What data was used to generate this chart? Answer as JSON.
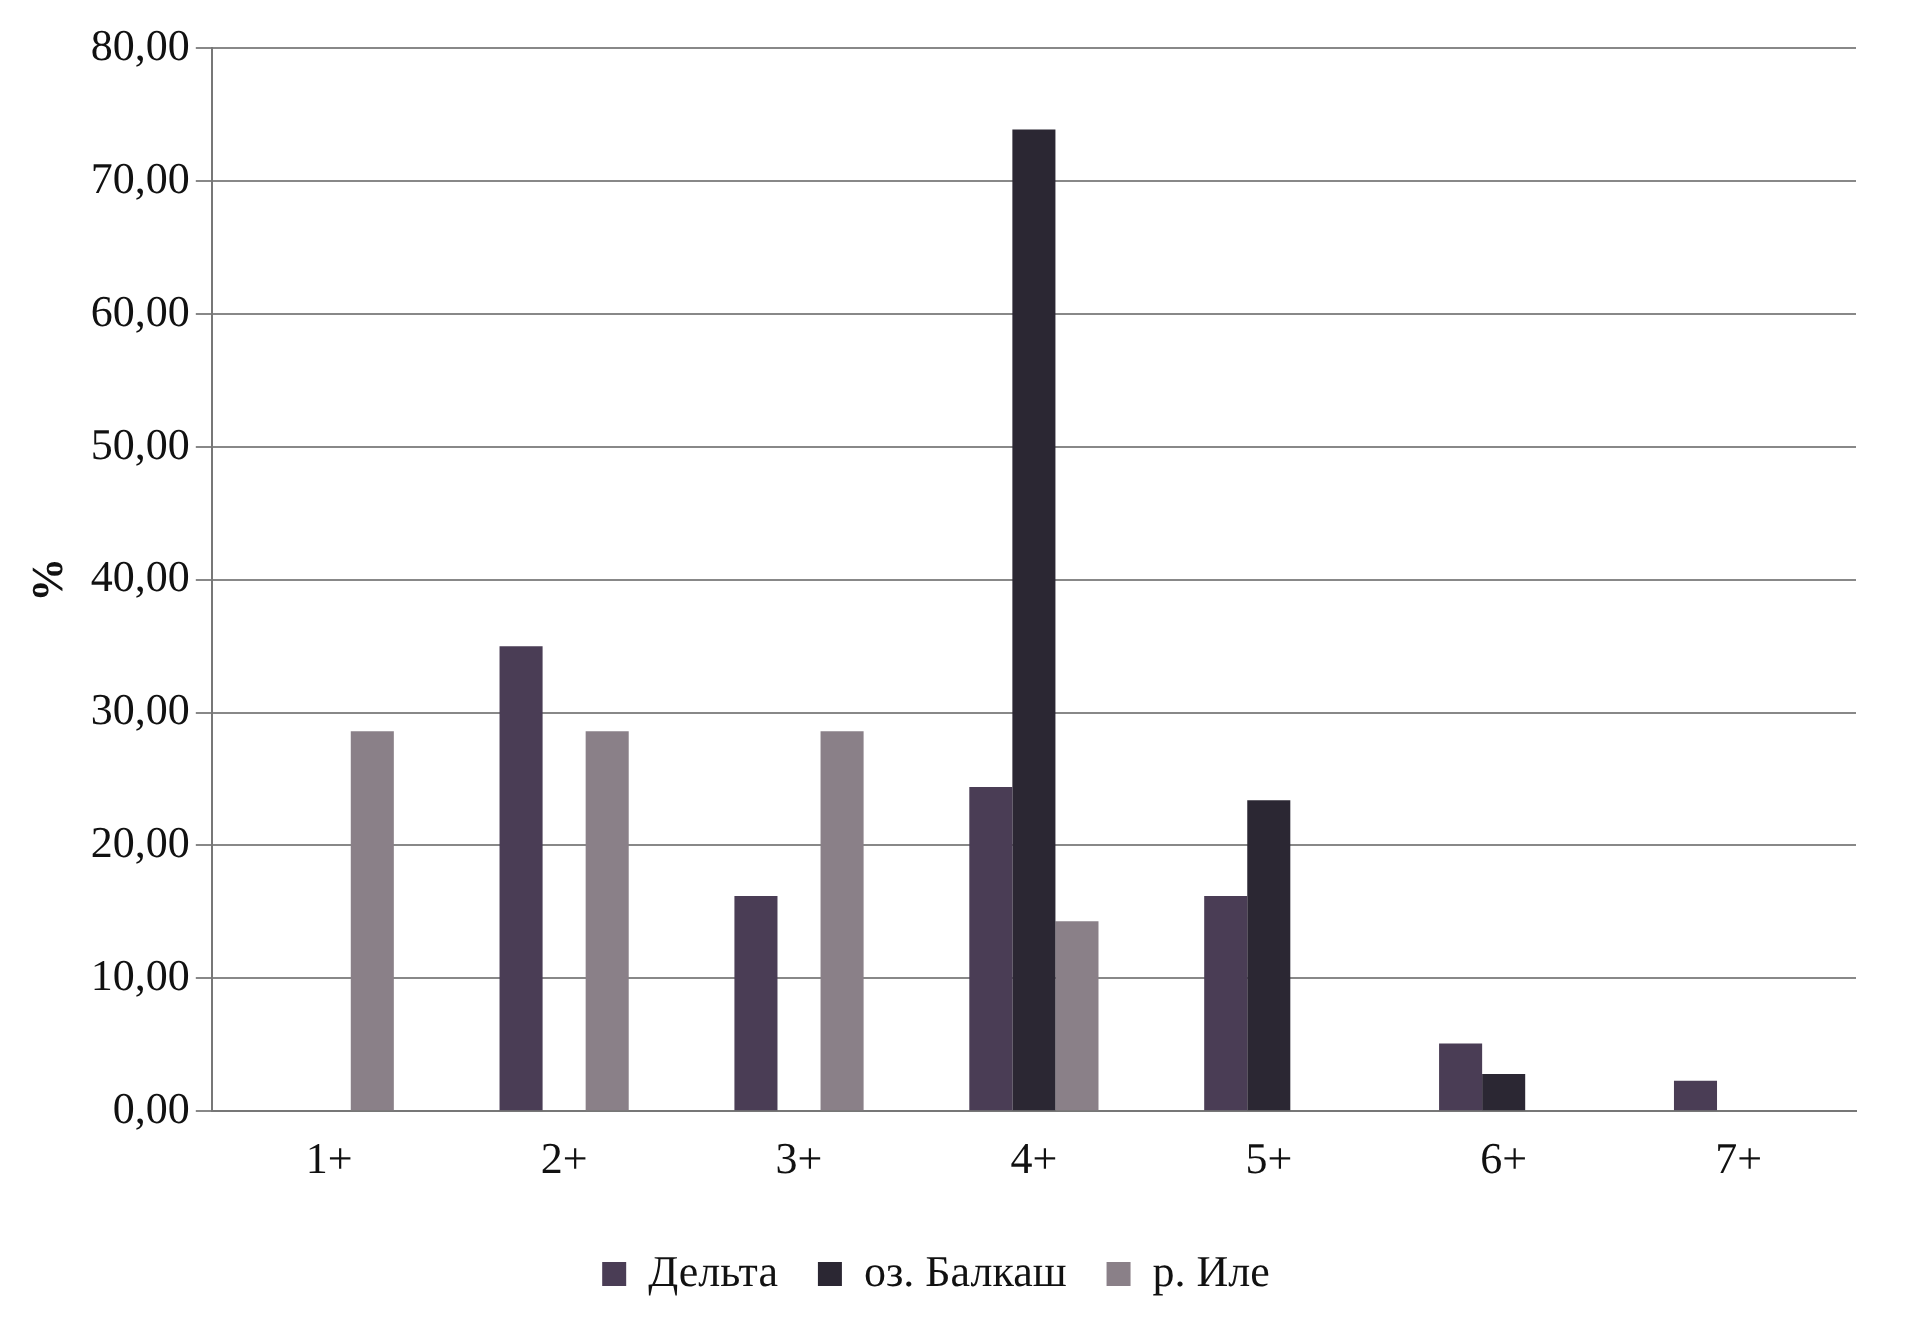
{
  "chart_data": {
    "type": "bar",
    "ylabel": "%",
    "categories": [
      "1+",
      "2+",
      "3+",
      "4+",
      "5+",
      "6+",
      "7+"
    ],
    "series": [
      {
        "name": "Дельта",
        "color": "#4a3d55",
        "values": [
          0,
          35,
          16.2,
          24.4,
          16.2,
          5.1,
          2.3
        ]
      },
      {
        "name": "оз. Балкаш",
        "color": "#2b2733",
        "values": [
          0,
          0,
          0,
          73.9,
          23.4,
          2.8,
          0
        ]
      },
      {
        "name": "р. Иле",
        "color": "#8a8088",
        "values": [
          28.6,
          28.6,
          28.6,
          14.3,
          0,
          0,
          0
        ]
      }
    ],
    "ylim": [
      0,
      80
    ],
    "yticks": [
      {
        "value": 0,
        "label": "0,00"
      },
      {
        "value": 10,
        "label": "10,00"
      },
      {
        "value": 20,
        "label": "20,00"
      },
      {
        "value": 30,
        "label": "30,00"
      },
      {
        "value": 40,
        "label": "40,00"
      },
      {
        "value": 50,
        "label": "50,00"
      },
      {
        "value": 60,
        "label": "60,00"
      },
      {
        "value": 70,
        "label": "70,00"
      },
      {
        "value": 80,
        "label": "80,00"
      }
    ],
    "grid": "y",
    "legend": "bottom"
  }
}
